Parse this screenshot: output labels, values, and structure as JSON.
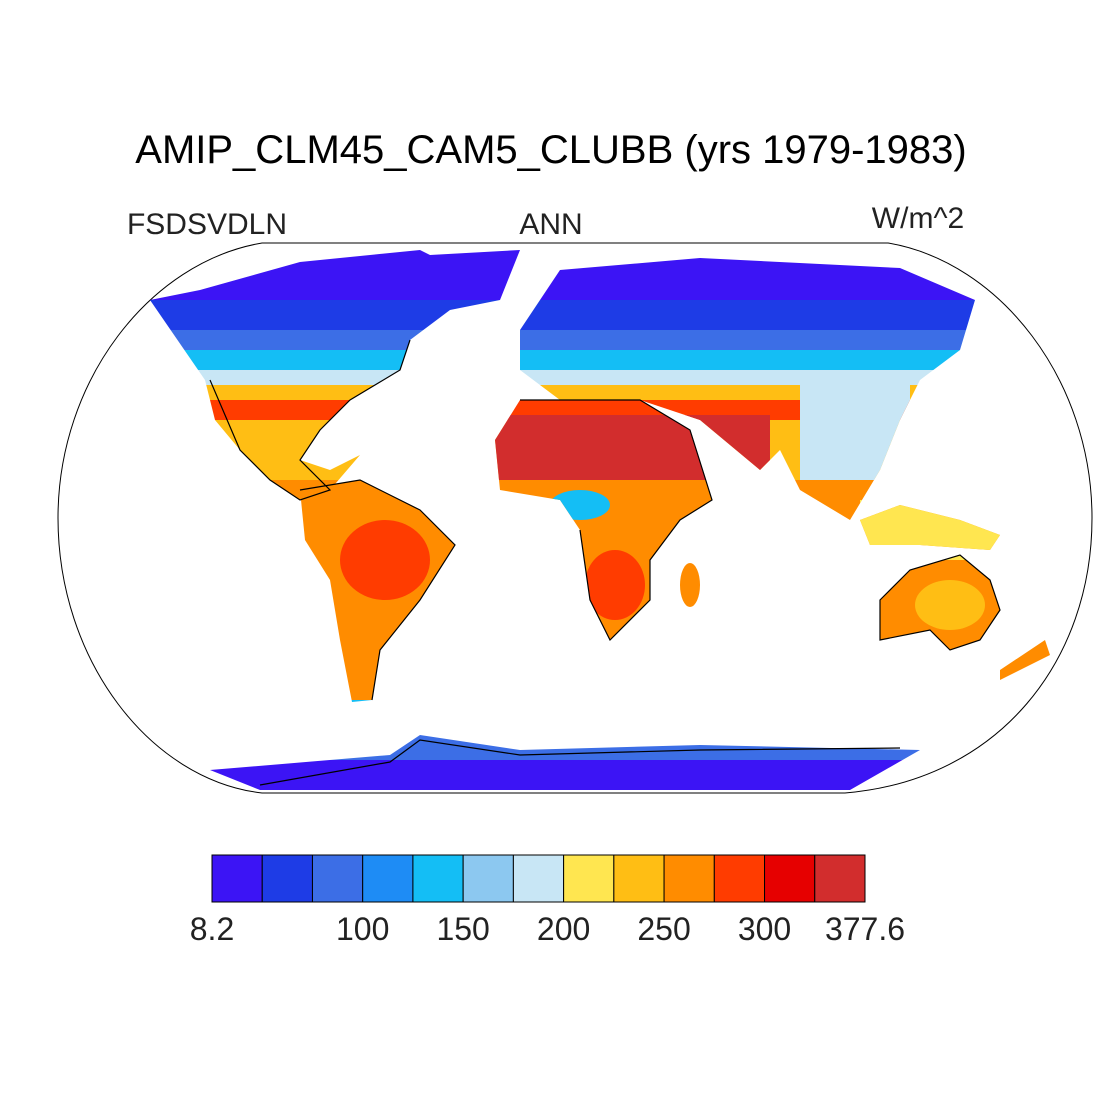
{
  "title": "AMIP_CLM45_CAM5_CLUBB (yrs 1979-1983)",
  "subtitle_left": "FSDSVDLN",
  "subtitle_center": "ANN",
  "subtitle_right": "W/m^2",
  "colorbar": {
    "colors": [
      "#3c14f5",
      "#1e3ce6",
      "#3c6ee6",
      "#1e8cf5",
      "#14bef5",
      "#8cc8f0",
      "#c8e6f5",
      "#ffe650",
      "#ffbe14",
      "#ff8c00",
      "#ff3c00",
      "#e60000",
      "#d22d2d"
    ],
    "levels": [
      8.2,
      null,
      null,
      100,
      null,
      150,
      null,
      200,
      null,
      250,
      null,
      300,
      null,
      377.6
    ]
  }
}
